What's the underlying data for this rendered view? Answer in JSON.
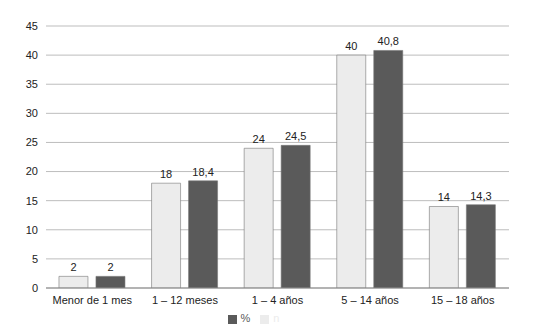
{
  "chart_data": {
    "type": "bar",
    "categories": [
      "Menor de 1 mes",
      "1 – 12 meses",
      "1 – 4 años",
      "5 – 14 años",
      "15 – 18 años"
    ],
    "series": [
      {
        "name": "n",
        "color": "#ececec",
        "values": [
          2,
          18,
          24,
          40,
          14
        ]
      },
      {
        "name": "%",
        "color": "#5a5a5a",
        "values": [
          2,
          18.4,
          24.5,
          40.8,
          14.3
        ],
        "value_labels": [
          "2",
          "18,4",
          "24,5",
          "40,8",
          "14,3"
        ]
      }
    ],
    "ylim": [
      0,
      45
    ],
    "yticks": [
      0,
      5,
      10,
      15,
      20,
      25,
      30,
      35,
      40,
      45
    ],
    "grid": true,
    "legend": "bottom",
    "data_labels": true
  }
}
